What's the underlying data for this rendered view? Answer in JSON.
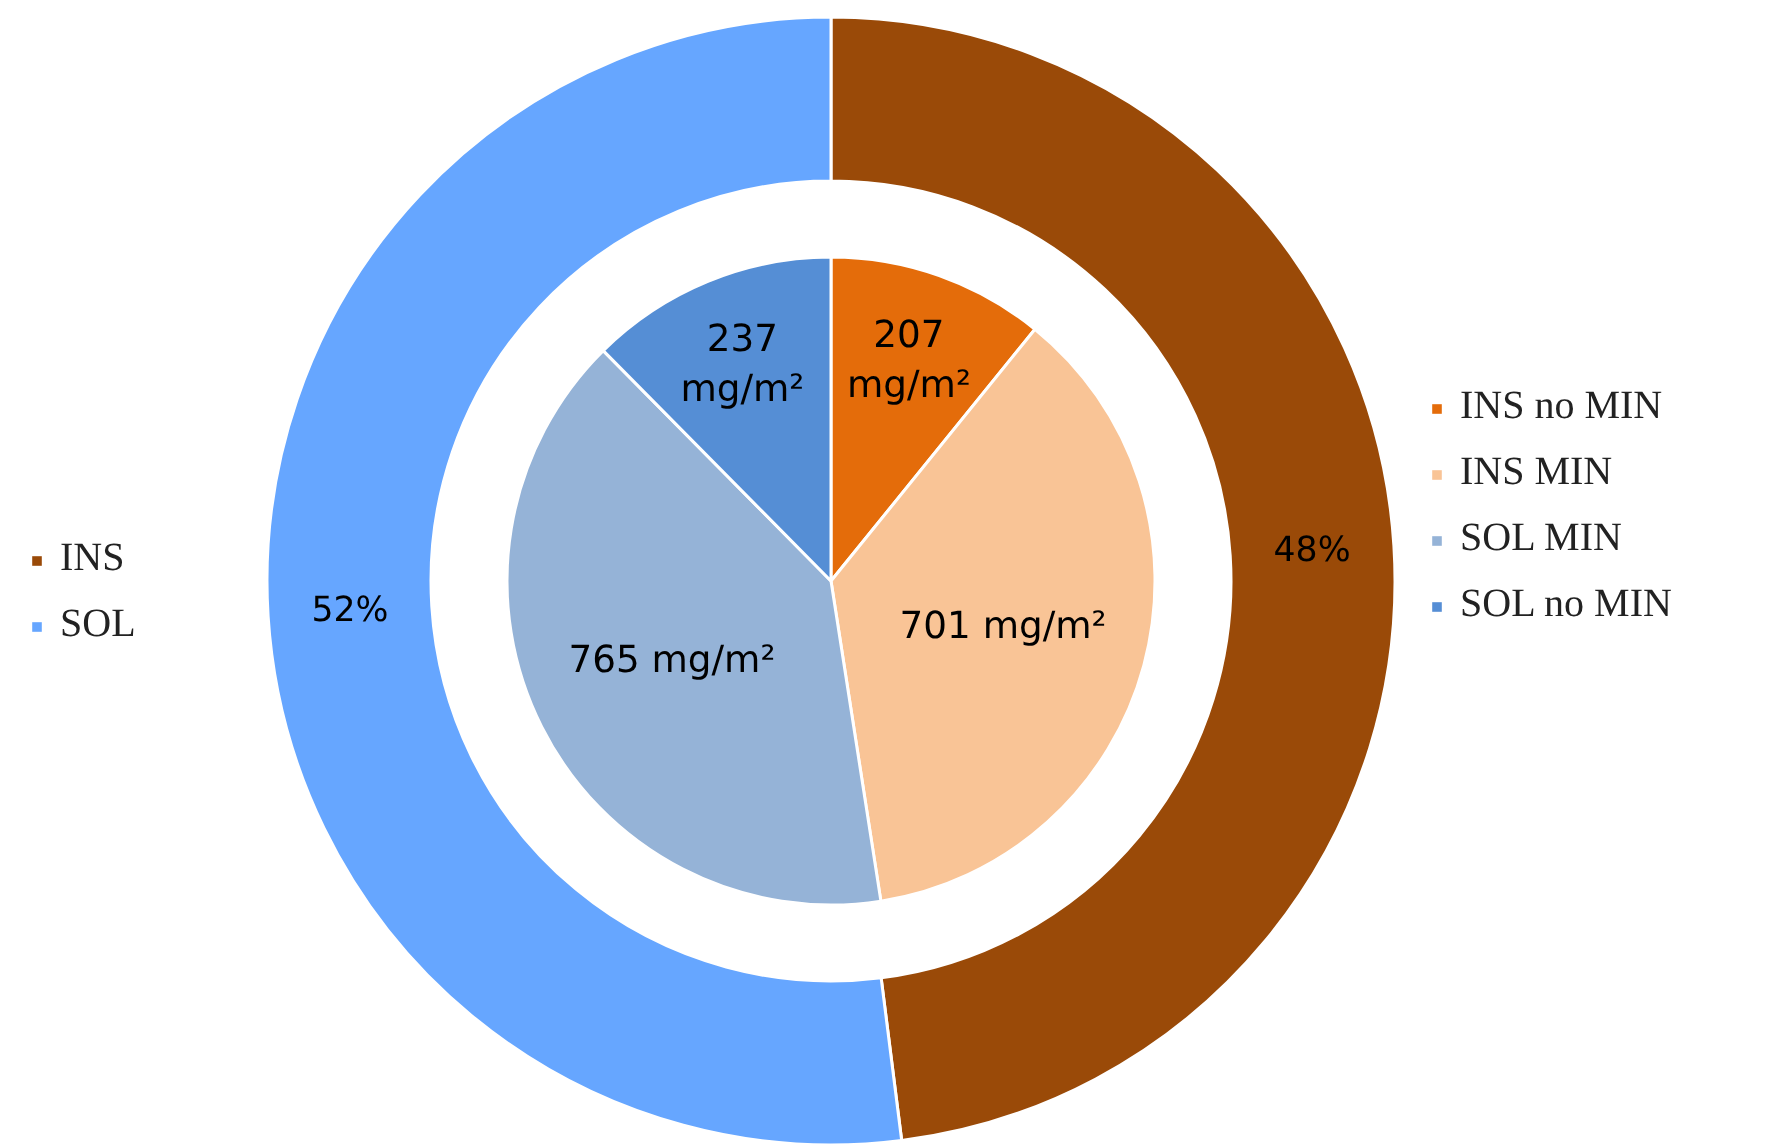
{
  "chart_data": {
    "type": "donut",
    "legend": "right",
    "categories": [
      "INS",
      "SOL",
      "INS no MIN",
      "INS MIN",
      "SOL MIN",
      "SOL no MIN"
    ],
    "series": [
      {
        "values": [
          48,
          52,
          null,
          null,
          null,
          null
        ],
        "colors": [
          "#9a4a08",
          "#66a6ff",
          null,
          null,
          null,
          null
        ],
        "value_labels": [
          "48%",
          "52%",
          null,
          null,
          null,
          null
        ]
      },
      {
        "type": "pie",
        "values": [
          null,
          null,
          207,
          701,
          765,
          237
        ],
        "colors": [
          null,
          null,
          "#e46c0a",
          "#f9c496",
          "#95b3d7",
          "#558ed5"
        ],
        "value_labels": [
          null,
          null,
          "207 mg/m²",
          "701 mg/m²",
          "765 mg/m²",
          "237 mg/m²"
        ]
      }
    ]
  }
}
